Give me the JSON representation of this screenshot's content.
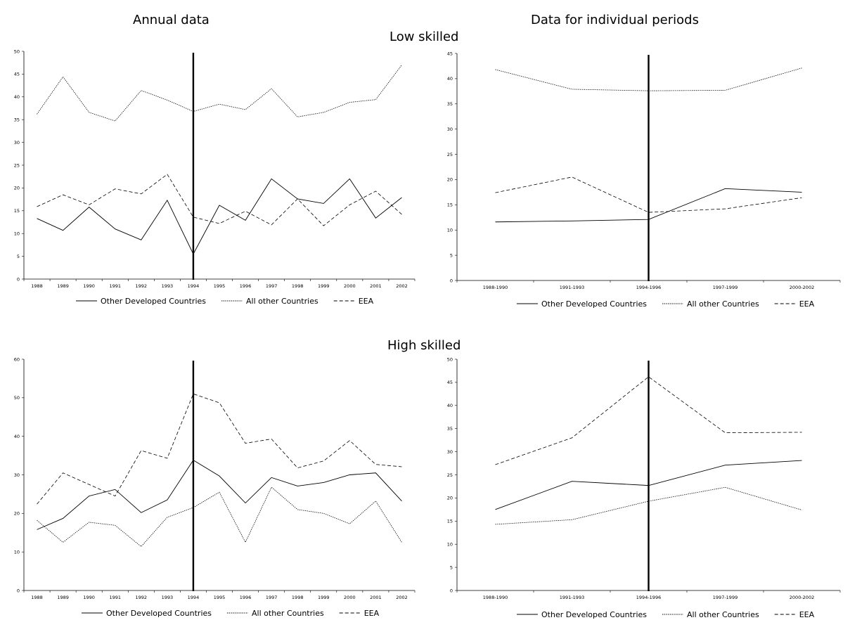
{
  "headers": {
    "left": "Annual data",
    "right": "Data for individual periods",
    "low": "Low skilled",
    "high": "High skilled"
  },
  "legend": [
    "Other Developed Countries",
    "All other Countries",
    "EEA"
  ],
  "series_styles": {
    "Other Developed Countries": "solid",
    "All other Countries": "dotted",
    "EEA": "dashed"
  },
  "chart_data": [
    {
      "type": "line",
      "group": "Low skilled",
      "column": "Annual data",
      "categories": [
        "1988",
        "1989",
        "1990",
        "1991",
        "1992",
        "1993",
        "1994",
        "1995",
        "1996",
        "1997",
        "1998",
        "1999",
        "2000",
        "2001",
        "2002"
      ],
      "ylim": [
        0,
        50
      ],
      "yticks": [
        0,
        5,
        10,
        15,
        20,
        25,
        30,
        35,
        40,
        45,
        50
      ],
      "marker_category": "1994",
      "series": [
        {
          "name": "Other Developed Countries",
          "values": [
            13.3,
            10.7,
            15.8,
            11.0,
            8.6,
            17.3,
            5.5,
            16.2,
            12.9,
            22.0,
            17.6,
            16.6,
            22.0,
            13.4,
            17.9
          ]
        },
        {
          "name": "All other Countries",
          "values": [
            36.2,
            44.4,
            36.6,
            34.7,
            41.4,
            39.3,
            36.8,
            38.4,
            37.2,
            41.8,
            35.6,
            36.6,
            38.8,
            39.4,
            47.0
          ]
        },
        {
          "name": "EEA",
          "values": [
            15.9,
            18.5,
            16.3,
            19.8,
            18.7,
            23.0,
            13.6,
            12.2,
            14.9,
            11.9,
            17.6,
            11.7,
            16.3,
            19.3,
            14.2
          ]
        }
      ]
    },
    {
      "type": "line",
      "group": "Low skilled",
      "column": "Data for individual periods",
      "categories": [
        "1988-1990",
        "1991-1993",
        "1994-1996",
        "1997-1999",
        "2000-2002"
      ],
      "ylim": [
        0,
        45
      ],
      "yticks": [
        0,
        5,
        10,
        15,
        20,
        25,
        30,
        35,
        40,
        45
      ],
      "marker_category": "1994-1996",
      "series": [
        {
          "name": "Other Developed Countries",
          "values": [
            11.6,
            11.8,
            12.1,
            18.2,
            17.5
          ]
        },
        {
          "name": "All other Countries",
          "values": [
            41.8,
            37.9,
            37.6,
            37.7,
            42.1
          ]
        },
        {
          "name": "EEA",
          "values": [
            17.4,
            20.5,
            13.5,
            14.2,
            16.4
          ]
        }
      ]
    },
    {
      "type": "line",
      "group": "High skilled",
      "column": "Annual data",
      "categories": [
        "1988",
        "1989",
        "1990",
        "1991",
        "1992",
        "1993",
        "1994",
        "1995",
        "1996",
        "1997",
        "1998",
        "1999",
        "2000",
        "2001",
        "2002"
      ],
      "ylim": [
        0,
        60
      ],
      "yticks": [
        0,
        10,
        20,
        30,
        40,
        50,
        60
      ],
      "marker_category": "1994",
      "series": [
        {
          "name": "Other Developed Countries",
          "values": [
            15.8,
            18.7,
            24.5,
            26.2,
            20.2,
            23.5,
            33.8,
            29.7,
            22.7,
            29.3,
            27.1,
            28.0,
            30.0,
            30.5,
            23.2
          ]
        },
        {
          "name": "All other Countries",
          "values": [
            18.2,
            12.5,
            17.7,
            16.9,
            11.4,
            19.0,
            21.5,
            25.5,
            12.5,
            26.8,
            21.0,
            20.0,
            17.3,
            23.2,
            12.5
          ]
        },
        {
          "name": "EEA",
          "values": [
            22.4,
            30.5,
            27.5,
            24.5,
            36.3,
            34.3,
            51.0,
            48.7,
            38.2,
            39.3,
            31.8,
            33.6,
            38.9,
            32.7,
            32.1
          ]
        }
      ]
    },
    {
      "type": "line",
      "group": "High skilled",
      "column": "Data for individual periods",
      "categories": [
        "1988-1990",
        "1991-1993",
        "1994-1996",
        "1997-1999",
        "2000-2002"
      ],
      "ylim": [
        0,
        50
      ],
      "yticks": [
        0,
        5,
        10,
        15,
        20,
        25,
        30,
        35,
        40,
        45,
        50
      ],
      "marker_category": "1994-1996",
      "series": [
        {
          "name": "Other Developed Countries",
          "values": [
            17.5,
            23.6,
            22.7,
            27.1,
            28.1
          ]
        },
        {
          "name": "All other Countries",
          "values": [
            14.3,
            15.3,
            19.3,
            22.3,
            17.4
          ]
        },
        {
          "name": "EEA",
          "values": [
            27.2,
            33.0,
            46.2,
            34.1,
            34.2
          ]
        }
      ]
    }
  ]
}
